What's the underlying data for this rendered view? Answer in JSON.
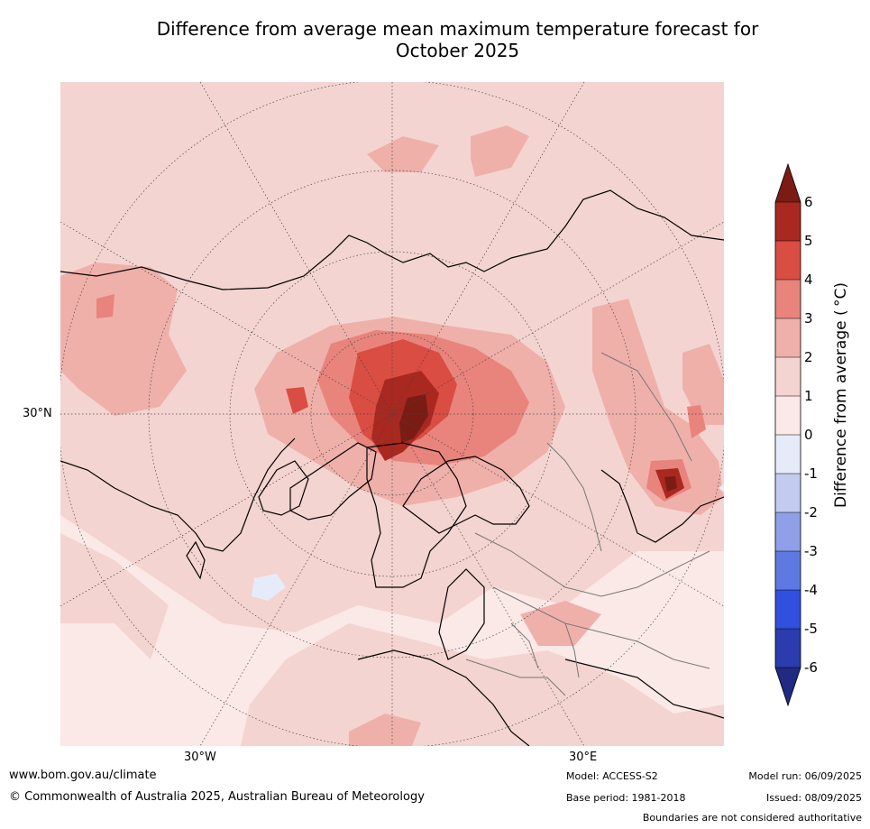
{
  "title": {
    "line1": "Difference from average mean maximum temperature forecast for",
    "line2": "October 2025"
  },
  "map": {
    "lon_labels": [
      "30°W",
      "30°E"
    ],
    "lat_label": "30°N",
    "background_color": "#fbe9e7",
    "icon": "north-polar-stereographic-map"
  },
  "colorbar": {
    "label": "Difference from average ( °C)",
    "ticks": [
      "6",
      "5",
      "4",
      "3",
      "2",
      "1",
      "0",
      "-1",
      "-2",
      "-3",
      "-4",
      "-5",
      "-6"
    ],
    "colors": [
      "#7b1c14",
      "#a9281f",
      "#d94d42",
      "#e8847c",
      "#efb0aa",
      "#f4d4d0",
      "#fbe9e7",
      "#e6ebf9",
      "#c3cbf1",
      "#8f9fe8",
      "#5f79e3",
      "#3150de",
      "#2a3cae",
      "#1f2a80"
    ]
  },
  "footer": {
    "url": "www.bom.gov.au/climate",
    "copyright": "© Commonwealth of Australia 2025, Australian Bureau of Meteorology",
    "model": "Model: ACCESS-S2",
    "base_period": "Base period: 1981-2018",
    "model_run": "Model run: 06/09/2025",
    "issued": "Issued: 08/09/2025",
    "boundaries": "Boundaries are not considered authoritative"
  }
}
